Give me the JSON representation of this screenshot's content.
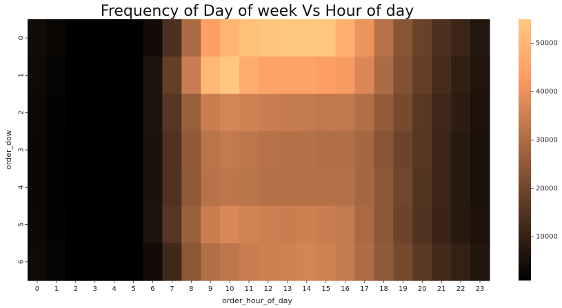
{
  "chart_data": {
    "type": "heatmap",
    "title": "Frequency of Day of week Vs Hour of day",
    "xlabel": "order_hour_of_day",
    "ylabel": "order_dow",
    "x": [
      "0",
      "1",
      "2",
      "3",
      "4",
      "5",
      "6",
      "7",
      "8",
      "9",
      "10",
      "11",
      "12",
      "13",
      "14",
      "15",
      "16",
      "17",
      "18",
      "19",
      "20",
      "21",
      "22",
      "23"
    ],
    "y": [
      "0",
      "1",
      "2",
      "3",
      "4",
      "5",
      "6"
    ],
    "values": [
      [
        3900,
        2300,
        1300,
        900,
        800,
        1200,
        4000,
        14000,
        30000,
        44000,
        50000,
        53000,
        54000,
        55000,
        55000,
        55000,
        49000,
        41000,
        32000,
        24000,
        19000,
        14000,
        11000,
        7000
      ],
      [
        3600,
        2000,
        1100,
        800,
        700,
        1100,
        6000,
        18000,
        35000,
        51000,
        55000,
        48000,
        45000,
        45000,
        45000,
        44000,
        43000,
        38000,
        30000,
        23000,
        18000,
        13000,
        9500,
        6500
      ],
      [
        3200,
        1700,
        1000,
        700,
        600,
        1000,
        6000,
        15500,
        27000,
        35000,
        37000,
        36000,
        35000,
        34500,
        34000,
        33500,
        33500,
        31000,
        26000,
        21000,
        16000,
        11500,
        8500,
        5900
      ],
      [
        3000,
        1600,
        900,
        700,
        600,
        1000,
        5800,
        14500,
        25500,
        32500,
        34000,
        33000,
        32000,
        31500,
        31500,
        31000,
        31000,
        29000,
        24000,
        19500,
        15500,
        11000,
        8000,
        5600
      ],
      [
        3000,
        1600,
        900,
        700,
        600,
        1000,
        5800,
        14500,
        25000,
        32000,
        33000,
        32500,
        31500,
        31500,
        31500,
        31500,
        31500,
        29000,
        24500,
        20000,
        15000,
        11000,
        8000,
        5600
      ],
      [
        3300,
        1800,
        1000,
        700,
        650,
        1100,
        6300,
        15500,
        27000,
        35000,
        38000,
        36500,
        35500,
        35000,
        35500,
        35000,
        34000,
        29500,
        24500,
        19500,
        14500,
        10500,
        8000,
        5900
      ],
      [
        3600,
        2000,
        1100,
        800,
        700,
        1100,
        4000,
        12000,
        24500,
        31000,
        33000,
        35000,
        35500,
        36000,
        37000,
        36000,
        34000,
        30500,
        25500,
        21000,
        16500,
        12500,
        9800,
        6800
      ]
    ],
    "vmin": 1000,
    "vmax": 55000,
    "colormap": "copper",
    "colorbar": {
      "ticks": [
        10000,
        20000,
        30000,
        40000,
        50000
      ],
      "tick_labels": [
        "10000",
        "20000",
        "30000",
        "40000",
        "50000"
      ]
    }
  }
}
